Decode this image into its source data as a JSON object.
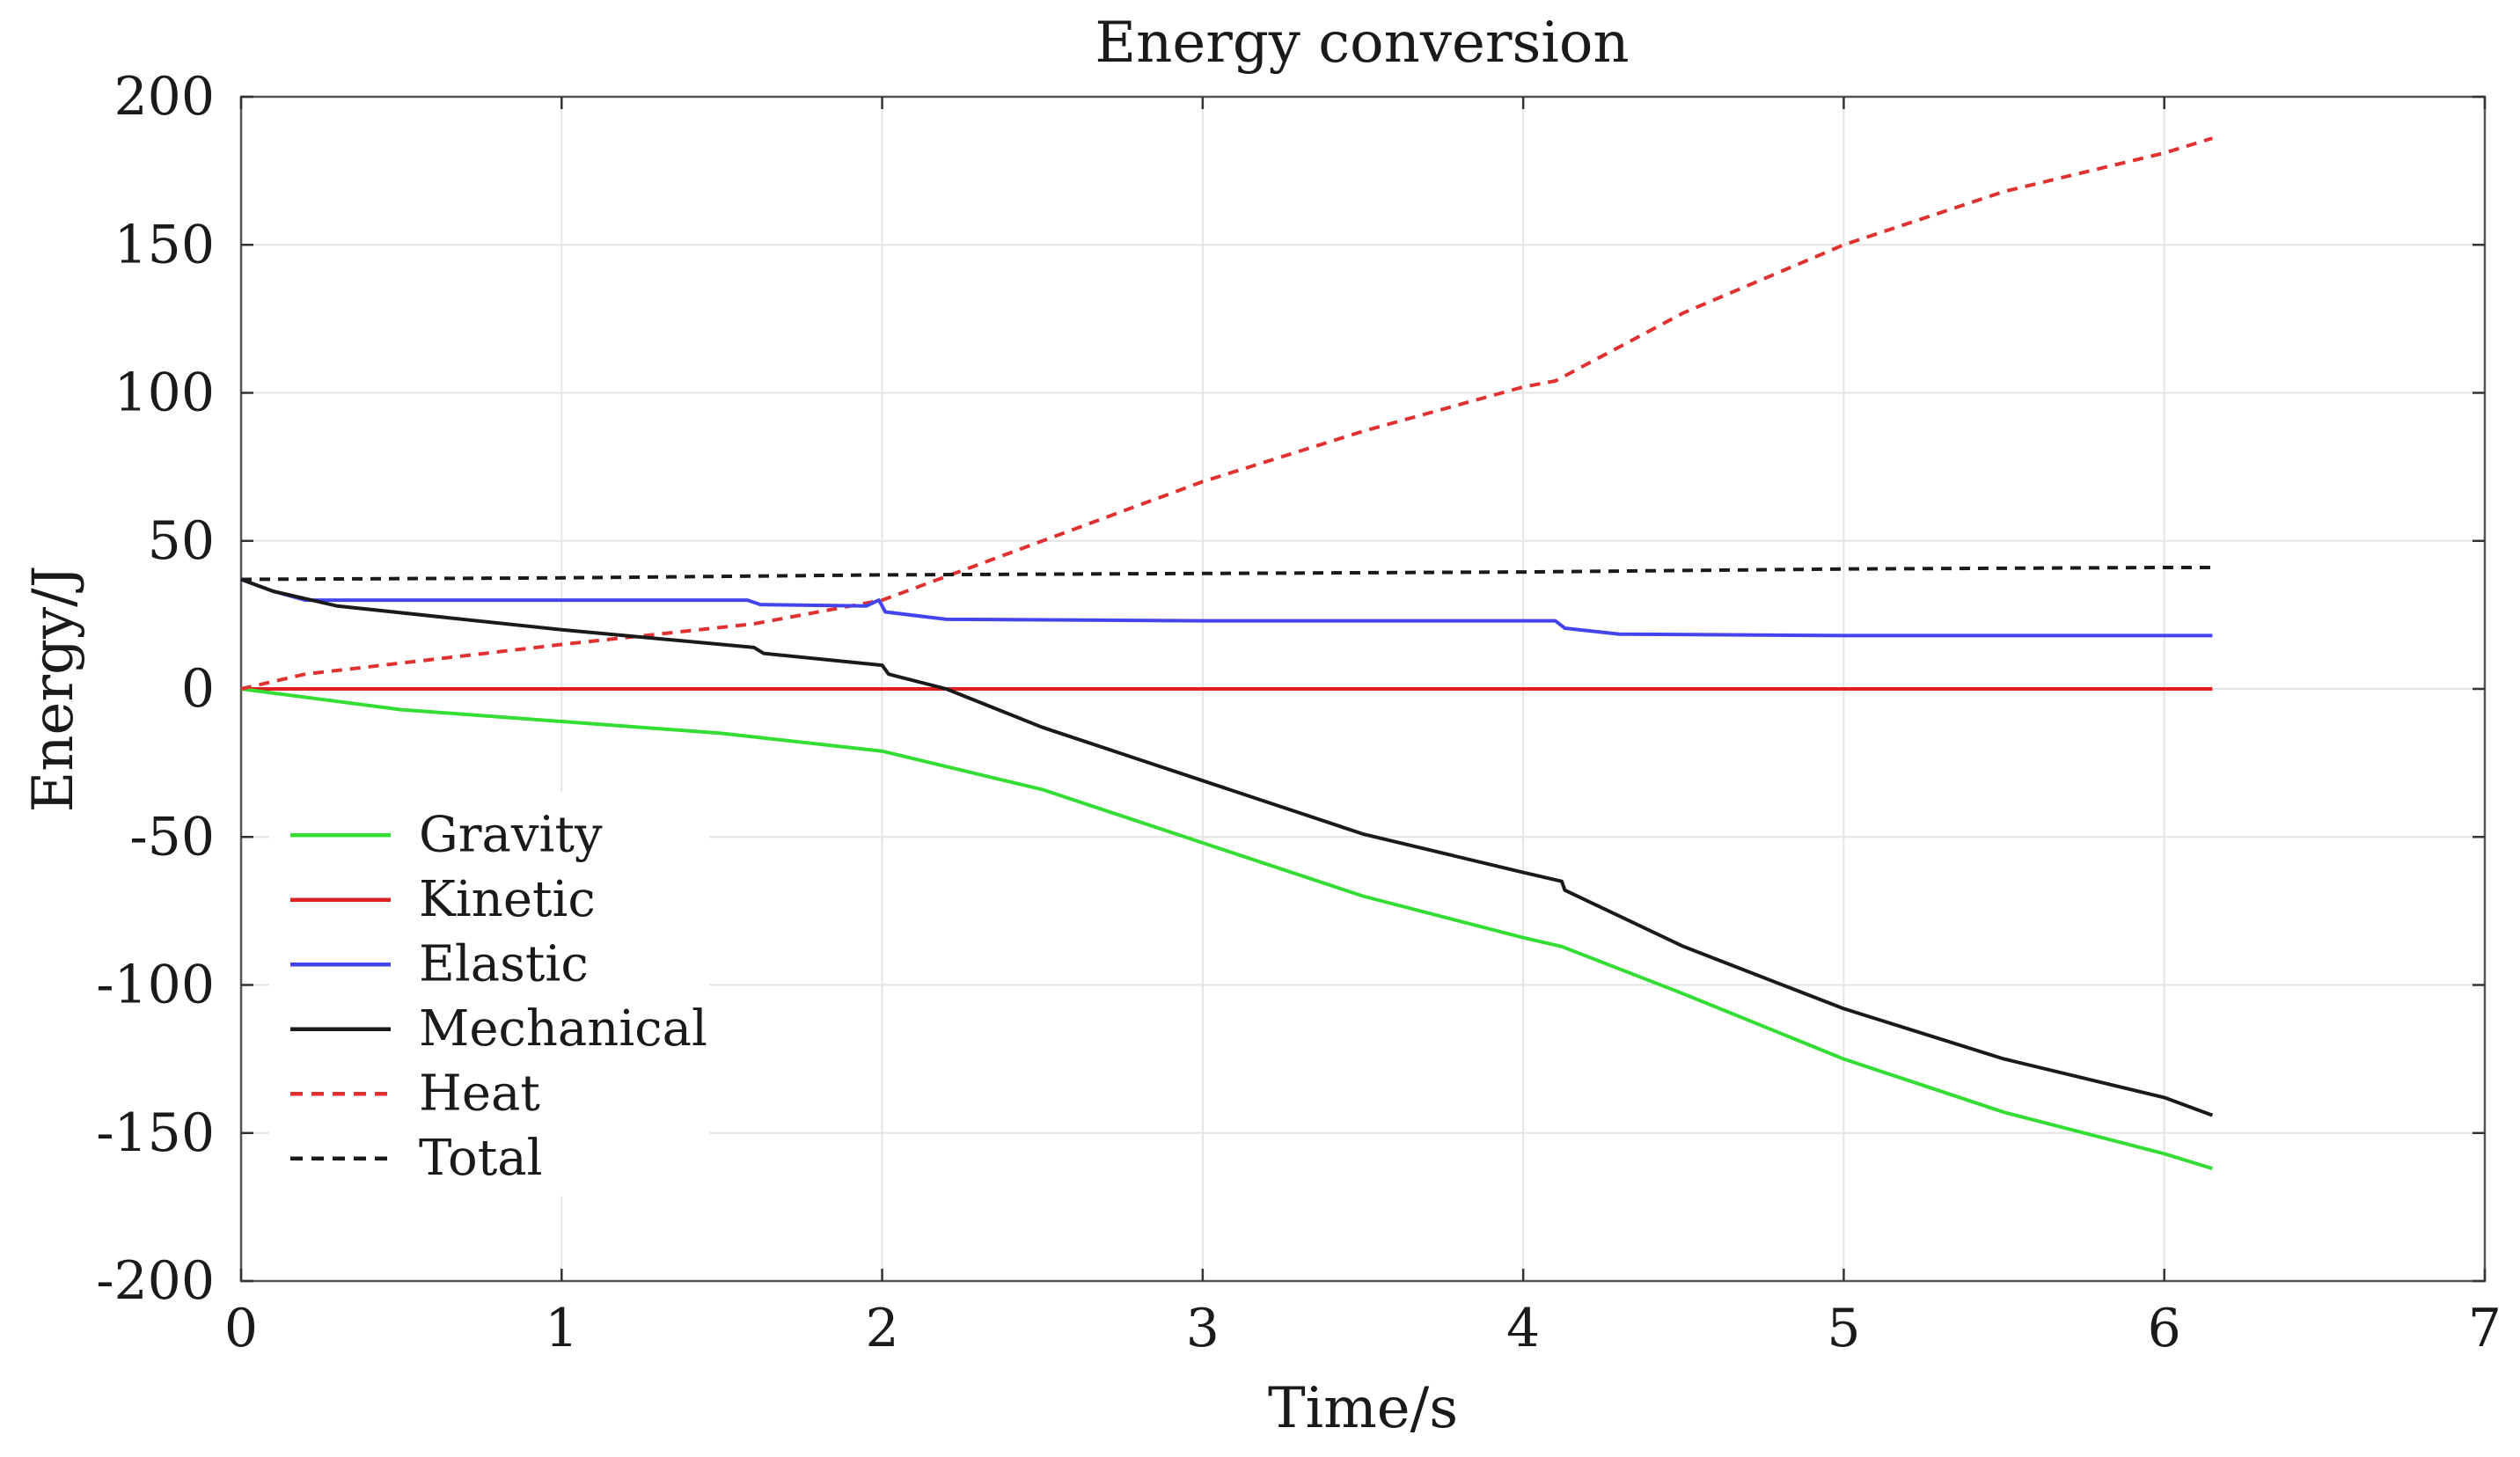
{
  "chart_data": {
    "type": "line",
    "title": "Energy conversion",
    "xlabel": "Time/s",
    "ylabel": "Energy/J",
    "xlim": [
      0,
      7
    ],
    "ylim": [
      -200,
      200
    ],
    "xticks": [
      0,
      1,
      2,
      3,
      4,
      5,
      6,
      7
    ],
    "yticks": [
      200,
      150,
      100,
      50,
      0,
      -50,
      -100,
      -150,
      -200
    ],
    "xtick_labels": [
      "0",
      "1",
      "2",
      "3",
      "4",
      "5",
      "6",
      "7"
    ],
    "ytick_labels": [
      "200",
      "150",
      "100",
      "50",
      "0",
      "-50",
      "-100",
      "-150",
      "-200"
    ],
    "grid": true,
    "legend_position": "bottom-left",
    "series": [
      {
        "name": "Gravity",
        "color": "#33dd33",
        "dash": "solid",
        "points": [
          [
            0,
            0
          ],
          [
            0.5,
            -7
          ],
          [
            1,
            -11
          ],
          [
            1.5,
            -15
          ],
          [
            2,
            -21
          ],
          [
            2.5,
            -34
          ],
          [
            3,
            -52
          ],
          [
            3.5,
            -70
          ],
          [
            4,
            -84
          ],
          [
            4.12,
            -87
          ],
          [
            4.5,
            -103
          ],
          [
            5,
            -125
          ],
          [
            5.5,
            -143
          ],
          [
            6,
            -157
          ],
          [
            6.15,
            -162
          ]
        ]
      },
      {
        "name": "Kinetic",
        "color": "#e02020",
        "dash": "solid",
        "points": [
          [
            0,
            0
          ],
          [
            1,
            0
          ],
          [
            2,
            0
          ],
          [
            3,
            0
          ],
          [
            4,
            0
          ],
          [
            5,
            0
          ],
          [
            6,
            0
          ],
          [
            6.15,
            0
          ]
        ]
      },
      {
        "name": "Elastic",
        "color": "#4444ee",
        "dash": "solid",
        "points": [
          [
            0,
            37
          ],
          [
            0.1,
            33
          ],
          [
            0.2,
            30
          ],
          [
            1,
            30
          ],
          [
            1.58,
            30
          ],
          [
            1.62,
            28.5
          ],
          [
            1.95,
            28
          ],
          [
            1.99,
            30
          ],
          [
            2.01,
            26
          ],
          [
            2.2,
            23.5
          ],
          [
            3,
            23
          ],
          [
            4.1,
            23
          ],
          [
            4.13,
            20.5
          ],
          [
            4.3,
            18.5
          ],
          [
            5,
            18
          ],
          [
            6.15,
            18
          ]
        ]
      },
      {
        "name": "Mechanical",
        "color": "#1a1a1a",
        "dash": "solid",
        "points": [
          [
            0,
            37
          ],
          [
            0.1,
            33
          ],
          [
            0.3,
            28
          ],
          [
            1,
            20
          ],
          [
            1.6,
            14
          ],
          [
            1.63,
            12
          ],
          [
            2,
            8
          ],
          [
            2.02,
            5
          ],
          [
            2.2,
            0
          ],
          [
            2.5,
            -13
          ],
          [
            3,
            -31
          ],
          [
            3.5,
            -49
          ],
          [
            4,
            -62
          ],
          [
            4.12,
            -65
          ],
          [
            4.13,
            -68
          ],
          [
            4.5,
            -87
          ],
          [
            5,
            -108
          ],
          [
            5.5,
            -125
          ],
          [
            6,
            -138
          ],
          [
            6.15,
            -144
          ]
        ]
      },
      {
        "name": "Heat",
        "color": "#e03030",
        "dash": "dashed",
        "points": [
          [
            0,
            0
          ],
          [
            0.2,
            5
          ],
          [
            0.6,
            10
          ],
          [
            1,
            15
          ],
          [
            1.6,
            22
          ],
          [
            2,
            30
          ],
          [
            2.5,
            50
          ],
          [
            3,
            70
          ],
          [
            3.5,
            87
          ],
          [
            4,
            102
          ],
          [
            4.1,
            104
          ],
          [
            4.5,
            127
          ],
          [
            5,
            150
          ],
          [
            5.5,
            168
          ],
          [
            6,
            181
          ],
          [
            6.15,
            186
          ]
        ]
      },
      {
        "name": "Total",
        "color": "#1a1a1a",
        "dash": "dashed",
        "points": [
          [
            0,
            37
          ],
          [
            1,
            37.5
          ],
          [
            2,
            38.5
          ],
          [
            3,
            39
          ],
          [
            4,
            39.5
          ],
          [
            5,
            40.5
          ],
          [
            6,
            41
          ],
          [
            6.15,
            41
          ]
        ]
      }
    ]
  }
}
